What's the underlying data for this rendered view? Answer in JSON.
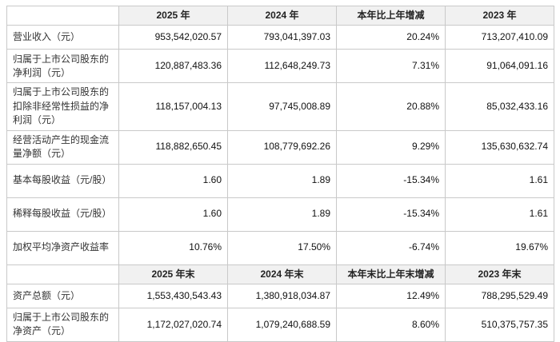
{
  "table": {
    "header1": [
      "2025 年",
      "2024 年",
      "本年比上年增减",
      "2023 年"
    ],
    "header2": [
      "2025 年末",
      "2024 年末",
      "本年末比上年末增减",
      "2023 年末"
    ],
    "rows1": [
      {
        "label": "营业收入（元）",
        "values": [
          "953,542,020.57",
          "793,041,397.03",
          "20.24%",
          "713,207,410.09"
        ]
      },
      {
        "label": "归属于上市公司股东的净利润（元）",
        "values": [
          "120,887,483.36",
          "112,648,249.73",
          "7.31%",
          "91,064,091.16"
        ]
      },
      {
        "label": "归属于上市公司股东的扣除非经常性损益的净利润（元）",
        "values": [
          "118,157,004.13",
          "97,745,008.89",
          "20.88%",
          "85,032,433.16"
        ]
      },
      {
        "label": "经营活动产生的现金流量净额（元）",
        "values": [
          "118,882,650.45",
          "108,779,692.26",
          "9.29%",
          "135,630,632.74"
        ]
      },
      {
        "label": "基本每股收益（元/股）",
        "values": [
          "1.60",
          "1.89",
          "-15.34%",
          "1.61"
        ]
      },
      {
        "label": "稀释每股收益（元/股）",
        "values": [
          "1.60",
          "1.89",
          "-15.34%",
          "1.61"
        ]
      },
      {
        "label": "加权平均净资产收益率",
        "values": [
          "10.76%",
          "17.50%",
          "-6.74%",
          "19.67%"
        ]
      }
    ],
    "rows2": [
      {
        "label": "资产总额（元）",
        "values": [
          "1,553,430,543.43",
          "1,380,918,034.87",
          "12.49%",
          "788,295,529.49"
        ]
      },
      {
        "label": "归属于上市公司股东的净资产（元）",
        "values": [
          "1,172,027,020.74",
          "1,079,240,688.59",
          "8.60%",
          "510,375,757.35"
        ]
      }
    ]
  }
}
